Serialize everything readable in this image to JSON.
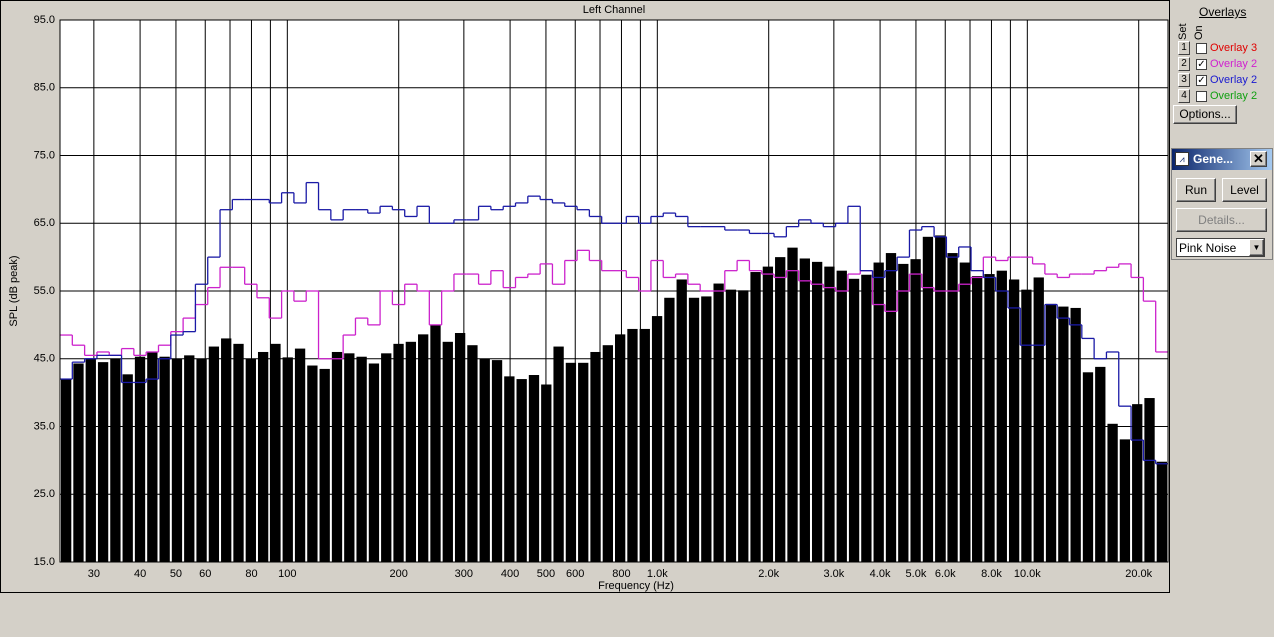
{
  "chart_data": {
    "type": "bar",
    "title": "Left Channel",
    "x_label": "Frequency (Hz)",
    "y_label": "SPL (dB peak)",
    "x_scale": "log",
    "grid": true,
    "xlim": [
      24.3,
      24000
    ],
    "xticks": [
      30,
      40,
      50,
      60,
      80,
      100,
      200,
      300,
      400,
      500,
      600,
      800,
      {
        "value": 1000,
        "label": "1.0k"
      },
      {
        "value": 2000,
        "label": "2.0k"
      },
      {
        "value": 3000,
        "label": "3.0k"
      },
      {
        "value": 4000,
        "label": "4.0k"
      },
      {
        "value": 5000,
        "label": "5.0k"
      },
      {
        "value": 6000,
        "label": "6.0k"
      },
      {
        "value": 8000,
        "label": "8.0k"
      },
      {
        "value": 10000,
        "label": "10.0k"
      },
      {
        "value": 20000,
        "label": "20.0k"
      }
    ],
    "x_minor_ticks": [
      70,
      90,
      700,
      900,
      7000,
      9000
    ],
    "ylim": [
      15,
      95
    ],
    "yticks": [
      {
        "value": 15,
        "label": "15.0"
      },
      {
        "value": 25,
        "label": "25.0"
      },
      {
        "value": 35,
        "label": "35.0"
      },
      {
        "value": 45,
        "label": "45.0"
      },
      {
        "value": 55,
        "label": "55.0"
      },
      {
        "value": 65,
        "label": "65.0"
      },
      {
        "value": 75,
        "label": "75.0"
      },
      {
        "value": 85,
        "label": "85.0"
      },
      {
        "value": 95,
        "label": "95.0"
      }
    ],
    "categories": [
      null,
      null,
      null,
      null,
      null,
      null,
      null,
      null,
      null,
      null,
      null,
      null,
      null,
      null,
      null,
      null,
      null,
      null,
      null,
      null,
      null,
      null,
      null,
      null,
      null,
      null,
      null,
      null,
      null,
      null,
      null,
      null,
      null,
      null,
      null,
      null,
      null,
      null,
      null,
      null,
      null,
      null,
      null,
      null,
      null,
      null,
      null,
      null,
      null,
      null,
      null,
      null,
      null,
      null,
      null,
      null,
      null,
      null,
      null,
      null,
      null,
      null,
      null,
      null,
      null,
      null,
      null,
      null,
      null,
      null,
      null,
      null,
      null,
      null,
      null,
      null,
      null,
      null,
      null,
      null,
      null,
      null,
      null,
      null,
      null,
      null,
      null,
      null,
      null,
      null
    ],
    "series": [
      {
        "type": "bar",
        "color": "#000000",
        "values": [
          42,
          44.3,
          45,
          44.5,
          45,
          42.7,
          45.3,
          46,
          45.3,
          45,
          45.5,
          45,
          46.8,
          48,
          47.2,
          45,
          46,
          47.2,
          45.2,
          46.5,
          44,
          43.5,
          46,
          45.8,
          45.3,
          44.3,
          45.8,
          47.2,
          47.5,
          48.6,
          50,
          47.5,
          48.8,
          47,
          45,
          44.8,
          42.4,
          42,
          42.6,
          41.2,
          46.8,
          44.4,
          44.4,
          46,
          47,
          48.6,
          49.4,
          49.4,
          51.3,
          54,
          56.7,
          54,
          54.2,
          56.1,
          55.2,
          55.1,
          57.8,
          58.6,
          60,
          61.4,
          59.8,
          59.3,
          58.6,
          58,
          56.8,
          57.4,
          59.2,
          60.6,
          59,
          59.7,
          63,
          63.2,
          60.6,
          59.2,
          57.2,
          57.5,
          58,
          56.7,
          55.2,
          57,
          53.1,
          52.7,
          52.5,
          43,
          43.8,
          35.4,
          33.1,
          38.3,
          39.2,
          29.8
        ]
      },
      {
        "type": "step",
        "color": "#cc22cc",
        "values": [
          48.5,
          47,
          45.5,
          46,
          45.5,
          46.5,
          45.5,
          46,
          47,
          49,
          51,
          53,
          55.5,
          58.5,
          58.5,
          56,
          54,
          51,
          55,
          53.5,
          55,
          45,
          45,
          48.5,
          51,
          50,
          55,
          53,
          56,
          55,
          50,
          55,
          57.5,
          57.5,
          56,
          58,
          55.5,
          57,
          57.5,
          59,
          56,
          59.5,
          61,
          59.5,
          58,
          58,
          57,
          55,
          59.5,
          57,
          57.5,
          56,
          55,
          55,
          58,
          59.5,
          58,
          57.5,
          57,
          58,
          56.5,
          56,
          55.5,
          55,
          57.5,
          58,
          53,
          52,
          55,
          57.5,
          55.5,
          55,
          55,
          56,
          57,
          60,
          59.5,
          60,
          60,
          59,
          57.5,
          57,
          57.5,
          57.5,
          58,
          58.5,
          59,
          57,
          53.5,
          46
        ]
      },
      {
        "type": "step",
        "color": "#1a1aa6",
        "values": [
          42,
          44.5,
          45,
          45.5,
          45.5,
          41.5,
          41.5,
          42,
          45,
          48.5,
          49,
          56,
          60,
          67,
          68.5,
          68.5,
          68.5,
          68,
          69.5,
          68,
          71,
          67,
          65.5,
          67,
          67,
          66.5,
          67.5,
          67,
          66,
          67.5,
          65,
          65,
          65.5,
          65.5,
          67.5,
          67,
          67.5,
          68,
          69,
          68.5,
          68,
          67.5,
          67,
          66,
          65,
          65,
          66,
          65,
          66,
          66.5,
          66,
          64.5,
          64.5,
          64.5,
          64,
          64,
          63.5,
          63.5,
          63,
          64.5,
          65.5,
          65,
          64.5,
          65,
          67.5,
          58,
          57,
          58,
          60,
          64,
          64.5,
          63,
          60,
          61.5,
          58,
          57,
          55,
          52.5,
          47,
          47,
          53,
          51,
          50,
          48,
          45,
          46,
          38,
          33,
          30,
          29.5
        ]
      }
    ]
  },
  "overlay_panel": {
    "title": "Overlays",
    "set_label": "Set",
    "on_label": "On",
    "rows": [
      {
        "number": 1,
        "checked": false,
        "label": "Overlay 3",
        "color": "#e00000"
      },
      {
        "number": 2,
        "checked": true,
        "label": "Overlay 2",
        "color": "#d020d0"
      },
      {
        "number": 3,
        "checked": true,
        "label": "Overlay 2",
        "color": "#1a1ad0"
      },
      {
        "number": 4,
        "checked": false,
        "label": "Overlay 2",
        "color": "#10a010"
      }
    ],
    "options_button": "Options..."
  },
  "generator": {
    "title": "Gene...",
    "run_button": "Run",
    "level_button": "Level",
    "details_button": "Details...",
    "source": "Pink Noise"
  }
}
